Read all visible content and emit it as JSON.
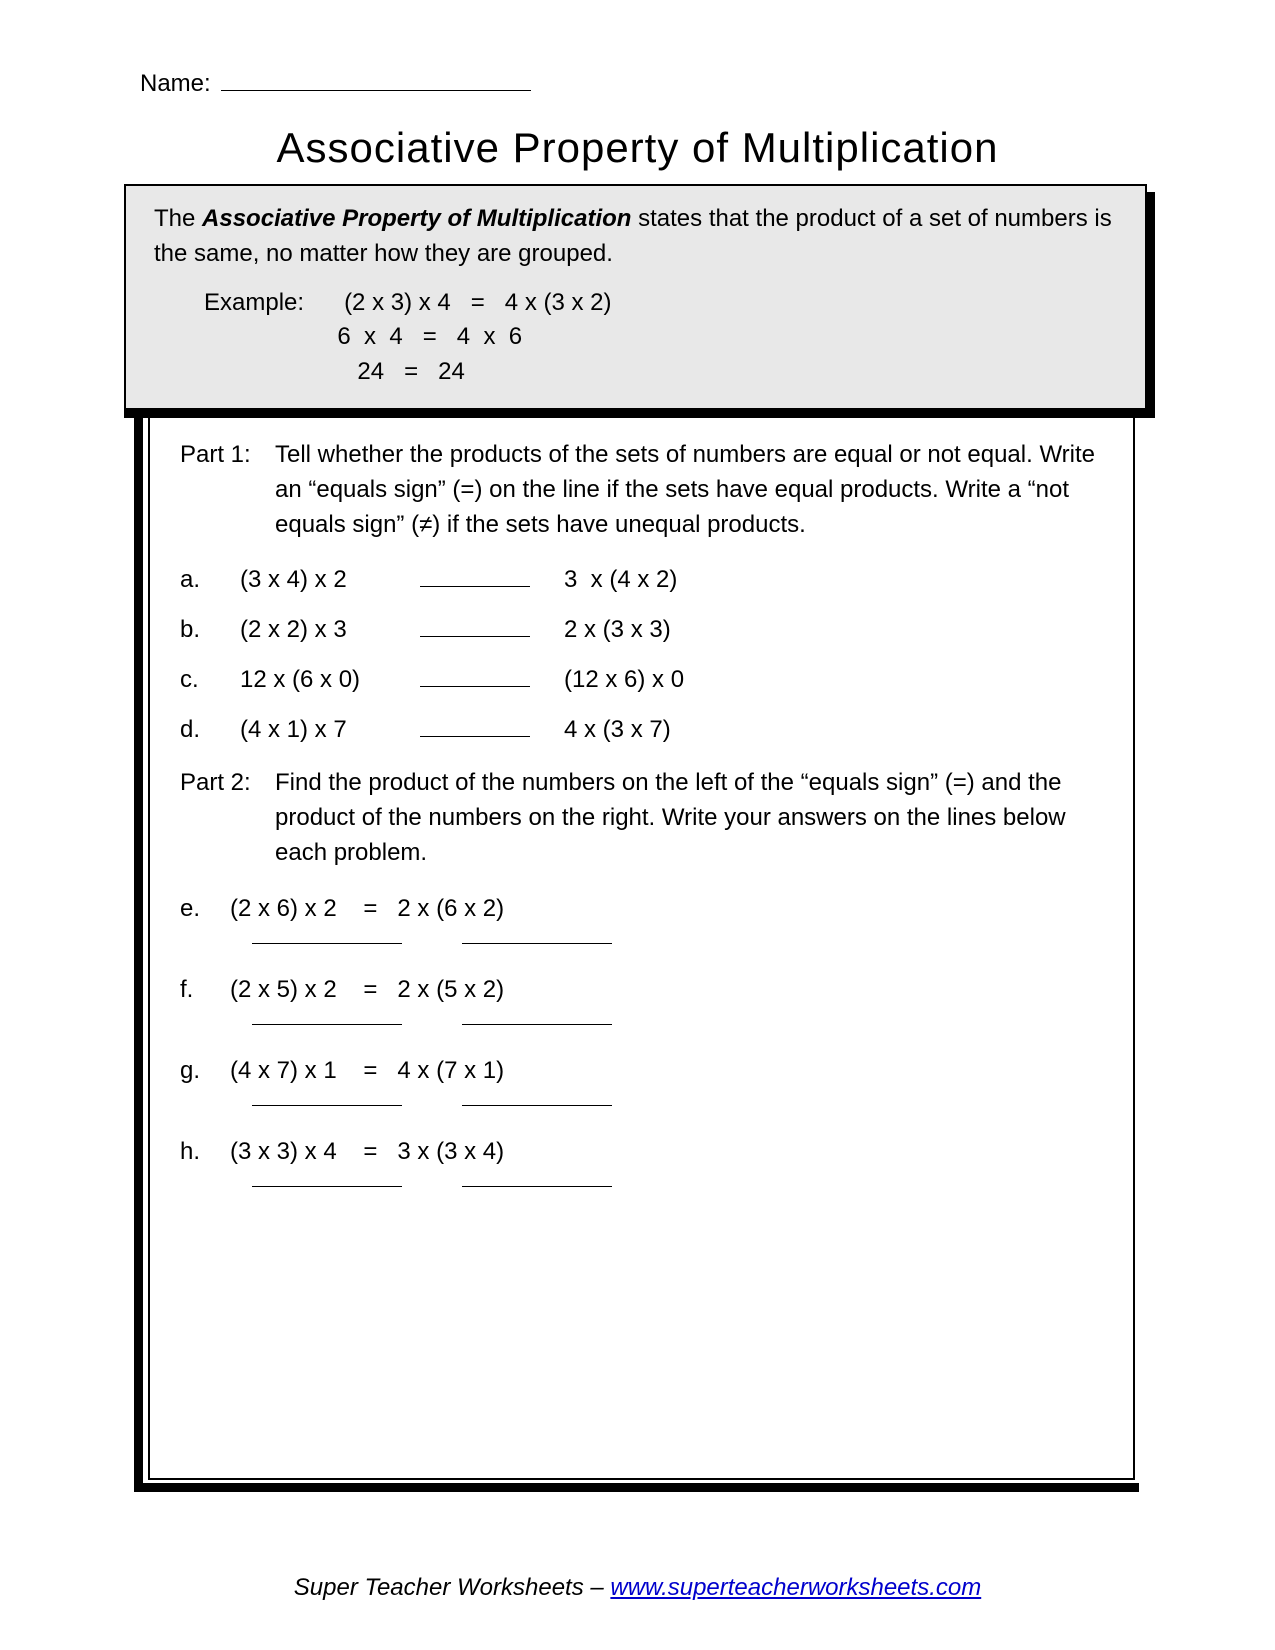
{
  "header": {
    "name_label": "Name:",
    "title": "Associative Property of Multiplication"
  },
  "definition": {
    "bold_term": "Associative Property of Multiplication",
    "pre": "The ",
    "post": " states that the product of a set of numbers is the same, no matter how they are grouped.",
    "example_label": "Example:",
    "example_line1_lhs": "(2 x 3) x 4",
    "example_line1_rhs": "4 x (3 x 2)",
    "example_line2_lhs": "6  x  4",
    "example_line2_rhs": "4  x  6",
    "example_line3_lhs": "24",
    "example_line3_rhs": "24"
  },
  "part1": {
    "label": "Part 1:",
    "instructions": "Tell whether the products of the sets of numbers are equal or not equal. Write an “equals  sign” (=) on the line if the sets have equal products. Write a “not equals sign” (≠) if the sets have unequal products.",
    "items": [
      {
        "label": "a.",
        "lhs": "(3 x 4) x 2",
        "rhs": "3  x (4 x 2)"
      },
      {
        "label": "b.",
        "lhs": "(2 x 2) x 3",
        "rhs": "2 x (3 x 3)"
      },
      {
        "label": "c.",
        "lhs": "12 x (6 x 0)",
        "rhs": "(12 x 6) x 0"
      },
      {
        "label": "d.",
        "lhs": "(4 x 1) x 7",
        "rhs": "4 x (3 x 7)"
      }
    ]
  },
  "part2": {
    "label": "Part 2:",
    "instructions": "Find the product of the numbers on the left of the “equals sign” (=) and the product of the numbers on the right.  Write your answers on the lines below each problem.",
    "items": [
      {
        "label": "e.",
        "lhs": "(2 x 6) x 2",
        "rhs": "2 x (6 x 2)"
      },
      {
        "label": "f.",
        "lhs": "(2 x 5) x 2",
        "rhs": "2 x (5 x 2)"
      },
      {
        "label": "g.",
        "lhs": "(4 x 7) x 1",
        "rhs": "4 x (7 x 1)"
      },
      {
        "label": "h.",
        "lhs": "(3 x 3) x 4",
        "rhs": "3 x (3 x 4)"
      }
    ]
  },
  "footer": {
    "text": "Super Teacher Worksheets – ",
    "link_text": "www.superteacherworksheets.com"
  },
  "style": {
    "page_bg": "#ffffff",
    "text_color": "#000000",
    "defbox_bg": "#e8e8e8",
    "link_color": "#0000cc",
    "title_fontsize": 42,
    "body_fontsize": 24
  }
}
